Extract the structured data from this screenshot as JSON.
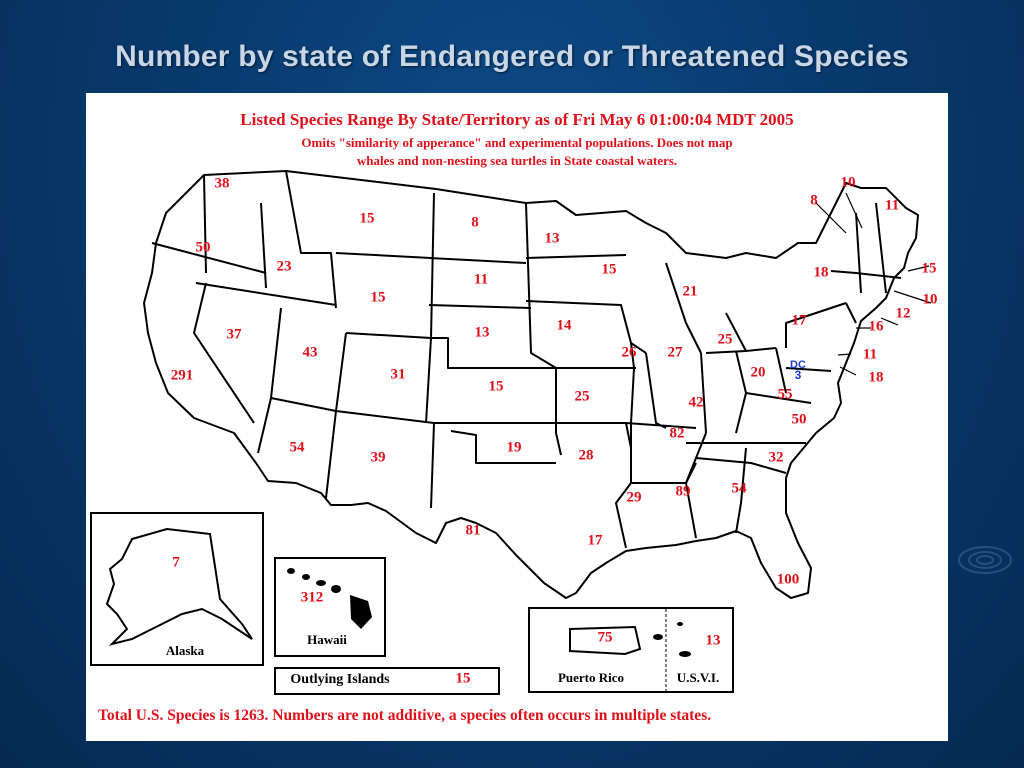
{
  "slide": {
    "title": "Number by state of Endangered or Threatened Species"
  },
  "map": {
    "header_line1": "Listed Species Range By State/Territory as of Fri May  6 01:00:04 MDT 2005",
    "header_line2": "Omits \"similarity of apperance\" and experimental populations.  Does not map",
    "header_line3": "whales and non-nesting sea turtles in State coastal waters.",
    "footer": "Total U.S. Species is 1263. Numbers are not additive, a species often occurs in multiple states.",
    "colors": {
      "text": "#e0101a",
      "border": "#000000",
      "dc": "#1a3fd0",
      "background": "#ffffff"
    },
    "states": [
      {
        "state": "WA",
        "value": "38"
      },
      {
        "state": "OR",
        "value": "50"
      },
      {
        "state": "CA",
        "value": "291"
      },
      {
        "state": "ID",
        "value": "23"
      },
      {
        "state": "NV",
        "value": "37"
      },
      {
        "state": "MT",
        "value": "15"
      },
      {
        "state": "WY",
        "value": "15"
      },
      {
        "state": "UT",
        "value": "43"
      },
      {
        "state": "AZ",
        "value": "54"
      },
      {
        "state": "CO",
        "value": "31"
      },
      {
        "state": "NM",
        "value": "39"
      },
      {
        "state": "ND",
        "value": "8"
      },
      {
        "state": "SD",
        "value": "11"
      },
      {
        "state": "NE",
        "value": "13"
      },
      {
        "state": "KS",
        "value": "15"
      },
      {
        "state": "OK",
        "value": "19"
      },
      {
        "state": "TX",
        "value": "81"
      },
      {
        "state": "MN",
        "value": "13"
      },
      {
        "state": "IA",
        "value": "14"
      },
      {
        "state": "MO",
        "value": "25"
      },
      {
        "state": "AR",
        "value": "28"
      },
      {
        "state": "LA",
        "value": "17"
      },
      {
        "state": "WI",
        "value": "15"
      },
      {
        "state": "IL",
        "value": "26"
      },
      {
        "state": "MI",
        "value": "21"
      },
      {
        "state": "IN",
        "value": "27"
      },
      {
        "state": "OH",
        "value": "25"
      },
      {
        "state": "KY",
        "value": "42"
      },
      {
        "state": "TN",
        "value": "82"
      },
      {
        "state": "MS",
        "value": "29"
      },
      {
        "state": "AL",
        "value": "89"
      },
      {
        "state": "GA",
        "value": "54"
      },
      {
        "state": "FL",
        "value": "100"
      },
      {
        "state": "SC",
        "value": "32"
      },
      {
        "state": "NC",
        "value": "50"
      },
      {
        "state": "VA",
        "value": "55"
      },
      {
        "state": "WV",
        "value": "20"
      },
      {
        "state": "PA",
        "value": "17"
      },
      {
        "state": "NY",
        "value": "18"
      },
      {
        "state": "VT",
        "value": "8"
      },
      {
        "state": "NH",
        "value": "10"
      },
      {
        "state": "ME",
        "value": "11"
      },
      {
        "state": "MA",
        "value": "15"
      },
      {
        "state": "RI",
        "value": "10"
      },
      {
        "state": "CT",
        "value": "12"
      },
      {
        "state": "NJ",
        "value": "16"
      },
      {
        "state": "DE",
        "value": "11"
      },
      {
        "state": "MD",
        "value": "18"
      }
    ],
    "dc": {
      "label": "DC",
      "value": "3"
    },
    "insets": {
      "alaska": {
        "label": "Alaska",
        "value": "7"
      },
      "hawaii": {
        "label": "Hawaii",
        "value": "312"
      },
      "outlying": {
        "label": "Outlying Islands",
        "value": "15"
      },
      "puerto_rico": {
        "label": "Puerto Rico",
        "value": "75"
      },
      "usvi": {
        "label": "U.S.V.I.",
        "value": "13"
      }
    }
  }
}
